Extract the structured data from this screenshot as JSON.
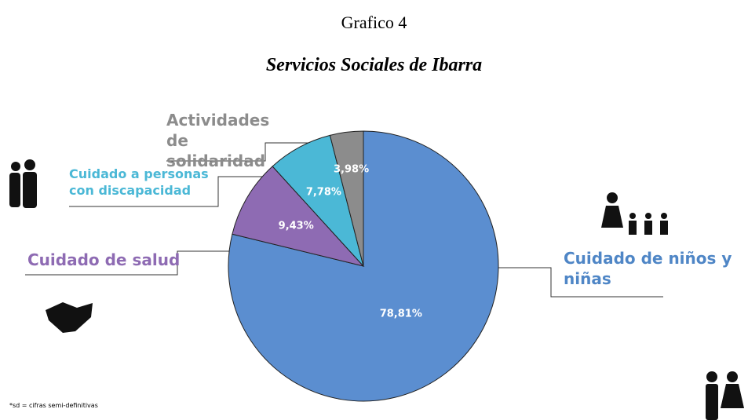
{
  "chart_data": {
    "type": "pie",
    "title": "Grafico 4",
    "subtitle": "Servicios Sociales de Ibarra",
    "categories": [
      "Cuidado de niños y niñas",
      "Cuidado de salud",
      "Cuidado a personas con discapacidad",
      "Actividades de solidaridad"
    ],
    "values": [
      78.81,
      9.43,
      7.78,
      3.98
    ],
    "value_labels": [
      "78,81%",
      "9,43%",
      "7,78%",
      "3,98%"
    ],
    "colors": [
      "#5b8ed0",
      "#8e6bb3",
      "#4bb8d6",
      "#8c8c8c"
    ],
    "note": "*sd = cifras semi-definitivas"
  }
}
